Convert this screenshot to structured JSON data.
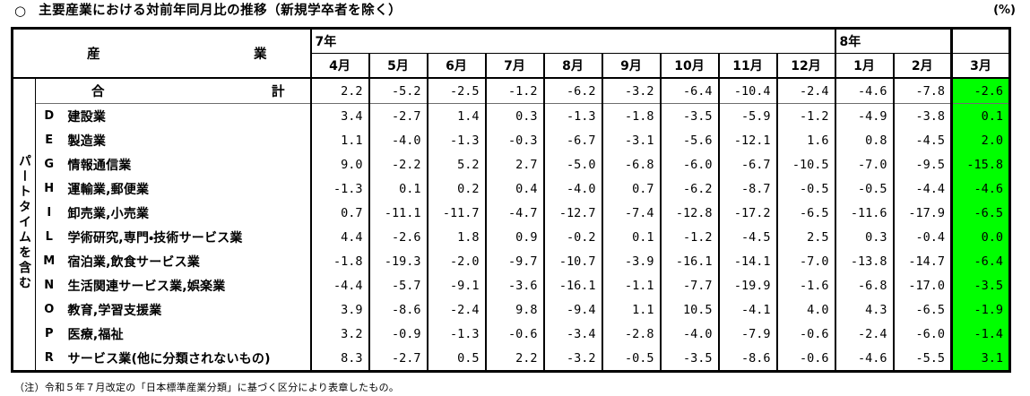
{
  "title_bullet": "○",
  "title": "主要産業における対前年同月比の推移（新規学卒者を除く）",
  "unit_label": "(%)",
  "footnote": "（注）令和５年７月改定の「日本標準産業分類」に基づく区分により表章したもの。",
  "colors": {
    "highlight_march": "#00ff00",
    "border": "#000000"
  },
  "table": {
    "industry_header_left": "産",
    "industry_header_right": "業",
    "year_groups": [
      {
        "label": "7年",
        "span": 9
      },
      {
        "label": "8年",
        "span": 2
      },
      {
        "label": "",
        "span": 1
      }
    ],
    "months": [
      "4月",
      "5月",
      "6月",
      "7月",
      "8月",
      "9月",
      "10月",
      "11月",
      "12月",
      "1月",
      "2月",
      "3月"
    ],
    "side_label": "パートタイムを含む",
    "total_row": {
      "label_left": "合",
      "label_right": "計",
      "values": [
        "2.2",
        "-5.2",
        "-2.5",
        "-1.2",
        "-6.2",
        "-3.2",
        "-6.4",
        "-10.4",
        "-2.4",
        "-4.6",
        "-7.8",
        "-2.6"
      ]
    },
    "rows": [
      {
        "code": "D",
        "name": "建設業",
        "values": [
          "3.4",
          "-2.7",
          "1.4",
          "0.3",
          "-1.3",
          "-1.8",
          "-3.5",
          "-5.9",
          "-1.2",
          "-4.9",
          "-3.8",
          "0.1"
        ]
      },
      {
        "code": "E",
        "name": "製造業",
        "values": [
          "1.1",
          "-4.0",
          "-1.3",
          "-0.3",
          "-6.7",
          "-3.1",
          "-5.6",
          "-12.1",
          "1.6",
          "0.8",
          "-4.5",
          "2.0"
        ]
      },
      {
        "code": "G",
        "name": "情報通信業",
        "values": [
          "9.0",
          "-2.2",
          "5.2",
          "2.7",
          "-5.0",
          "-6.8",
          "-6.0",
          "-6.7",
          "-10.5",
          "-7.0",
          "-9.5",
          "-15.8"
        ]
      },
      {
        "code": "H",
        "name": "運輸業,郵便業",
        "values": [
          "-1.3",
          "0.1",
          "0.2",
          "0.4",
          "-4.0",
          "0.7",
          "-6.2",
          "-8.7",
          "-0.5",
          "-0.5",
          "-4.4",
          "-4.6"
        ]
      },
      {
        "code": "I",
        "name": "卸売業,小売業",
        "values": [
          "0.7",
          "-11.1",
          "-11.7",
          "-4.7",
          "-12.7",
          "-7.4",
          "-12.8",
          "-17.2",
          "-6.5",
          "-11.6",
          "-17.9",
          "-6.5"
        ]
      },
      {
        "code": "L",
        "name": "学術研究,専門・技術サービス業",
        "values": [
          "4.4",
          "-2.6",
          "1.8",
          "0.9",
          "-0.2",
          "0.1",
          "-1.2",
          "-4.5",
          "2.5",
          "0.3",
          "-0.4",
          "0.0"
        ]
      },
      {
        "code": "M",
        "name": "宿泊業,飲食サービス業",
        "values": [
          "-1.8",
          "-19.3",
          "-2.0",
          "-9.7",
          "-10.7",
          "-3.9",
          "-16.1",
          "-14.1",
          "-7.0",
          "-13.8",
          "-14.7",
          "-6.4"
        ]
      },
      {
        "code": "N",
        "name": "生活関連サービス業,娯楽業",
        "values": [
          "-4.4",
          "-5.7",
          "-9.1",
          "-3.6",
          "-16.1",
          "-1.1",
          "-7.7",
          "-19.9",
          "-1.6",
          "-6.8",
          "-17.0",
          "-3.5"
        ]
      },
      {
        "code": "O",
        "name": "教育,学習支援業",
        "values": [
          "3.9",
          "-8.6",
          "-2.4",
          "9.8",
          "-9.4",
          "1.1",
          "10.5",
          "-4.1",
          "4.0",
          "4.3",
          "-6.5",
          "-1.9"
        ]
      },
      {
        "code": "P",
        "name": "医療,福祉",
        "values": [
          "3.2",
          "-0.9",
          "-1.3",
          "-0.6",
          "-3.4",
          "-2.8",
          "-4.0",
          "-7.9",
          "-0.6",
          "-2.4",
          "-6.0",
          "-1.4"
        ]
      },
      {
        "code": "R",
        "name": "サービス業(他に分類されないもの)",
        "values": [
          "8.3",
          "-2.7",
          "0.5",
          "2.2",
          "-3.2",
          "-0.5",
          "-3.5",
          "-8.6",
          "-0.6",
          "-4.6",
          "-5.5",
          "3.1"
        ]
      }
    ]
  }
}
